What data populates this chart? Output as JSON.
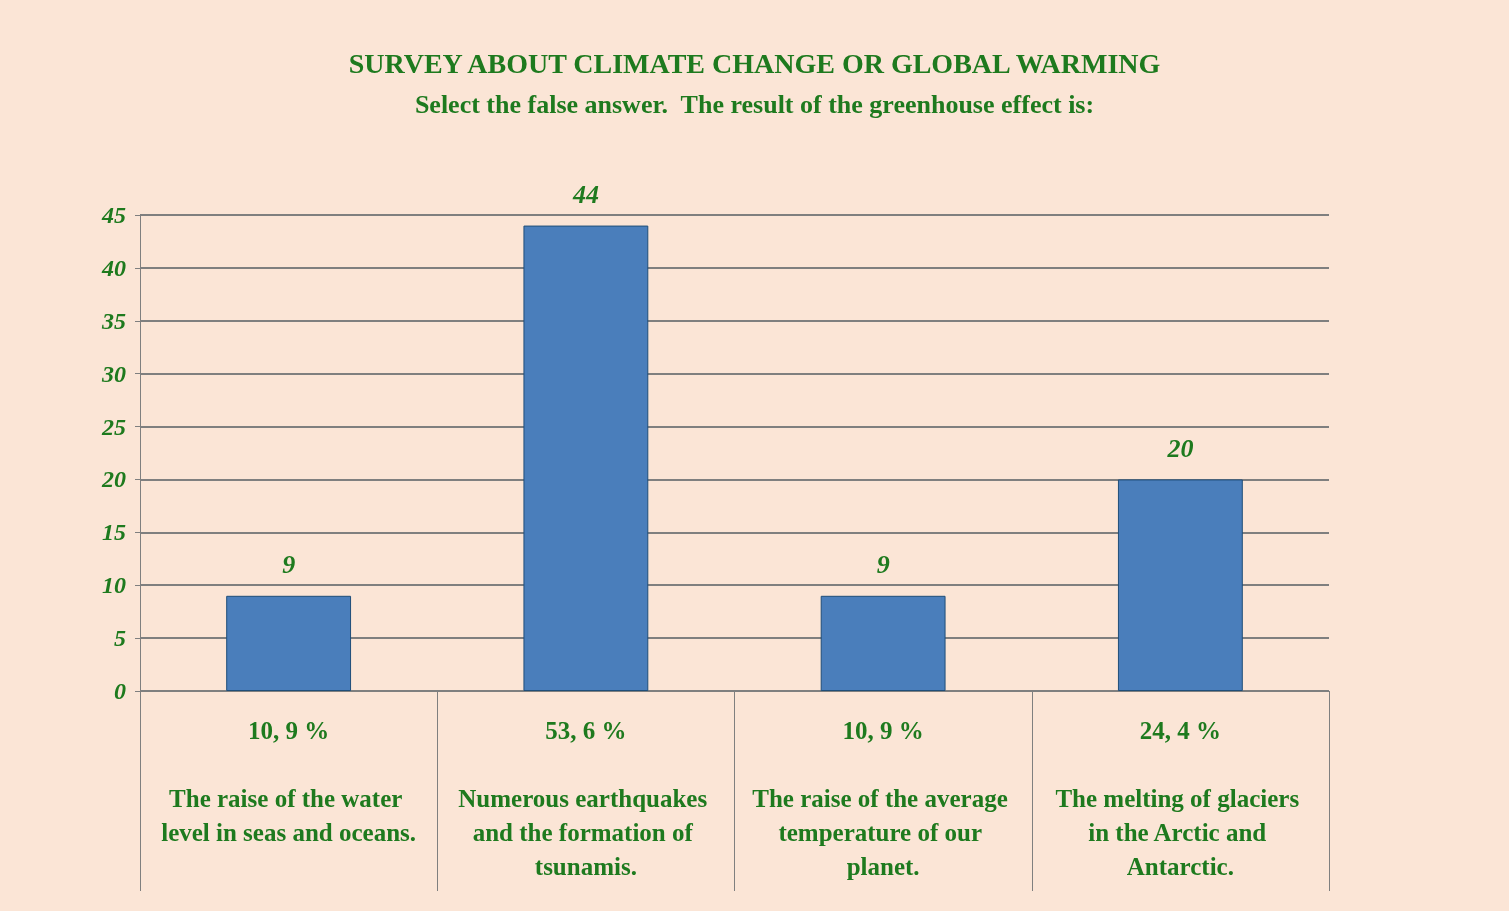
{
  "chart_data": {
    "type": "bar",
    "title": "SURVEY ABOUT CLIMATE CHANGE OR GLOBAL WARMING",
    "subtitle": "Select the false answer.  The result of the greenhouse effect is:",
    "categories": [
      "10, 9 %\n\nThe raise of the water level in seas and oceans.",
      "53, 6 %\n\nNumerous earthquakes and the formation of tsunamis.",
      "10, 9 %\n\nThe raise of the average temperature of our planet.",
      "24, 4 %\n\nThe melting of glaciers in the Arctic and Antarctic."
    ],
    "values": [
      9,
      44,
      9,
      20
    ],
    "color": "#4a7ebb",
    "data_labels": true,
    "ylim": [
      0,
      45
    ],
    "yticks": [
      0,
      5,
      10,
      15,
      20,
      25,
      30,
      35,
      40,
      45
    ],
    "grid": true
  }
}
